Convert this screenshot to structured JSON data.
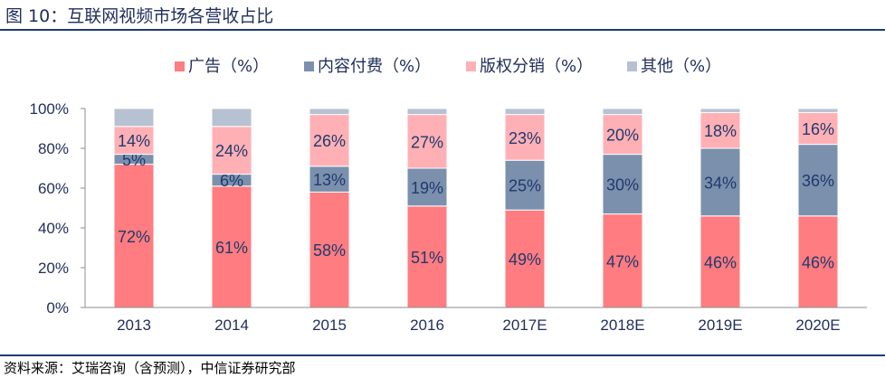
{
  "figure_title": "图 10：互联网视频市场各营收占比",
  "source": "资料来源：艾瑞咨询（含预测），中信证券研究部",
  "chart_data": {
    "type": "bar",
    "stacked": true,
    "categories": [
      "2013",
      "2014",
      "2015",
      "2016",
      "2017E",
      "2018E",
      "2019E",
      "2020E"
    ],
    "yticks": [
      "0%",
      "20%",
      "40%",
      "60%",
      "80%",
      "100%"
    ],
    "ylim": [
      0,
      100
    ],
    "legend_position": "top",
    "series": [
      {
        "name": "广告（%）",
        "color": "#ff7c80",
        "values": [
          72,
          61,
          58,
          51,
          49,
          47,
          46,
          46
        ],
        "labels": [
          "72%",
          "61%",
          "58%",
          "51%",
          "49%",
          "47%",
          "46%",
          "46%"
        ]
      },
      {
        "name": "内容付费（%）",
        "color": "#7b90ad",
        "values": [
          5,
          6,
          13,
          19,
          25,
          30,
          34,
          36
        ],
        "labels": [
          "5%",
          "6%",
          "13%",
          "19%",
          "25%",
          "30%",
          "34%",
          "36%"
        ]
      },
      {
        "name": "版权分销（%）",
        "color": "#ffb0b5",
        "values": [
          14,
          24,
          26,
          27,
          23,
          20,
          18,
          16
        ],
        "labels": [
          "14%",
          "24%",
          "26%",
          "27%",
          "23%",
          "20%",
          "18%",
          "16%"
        ]
      },
      {
        "name": "其他（%）",
        "color": "#b6c1d1",
        "values": [
          9,
          9,
          3,
          3,
          3,
          3,
          2,
          2
        ],
        "labels": [
          "",
          "",
          "",
          "",
          "",
          "",
          "",
          ""
        ]
      }
    ]
  }
}
